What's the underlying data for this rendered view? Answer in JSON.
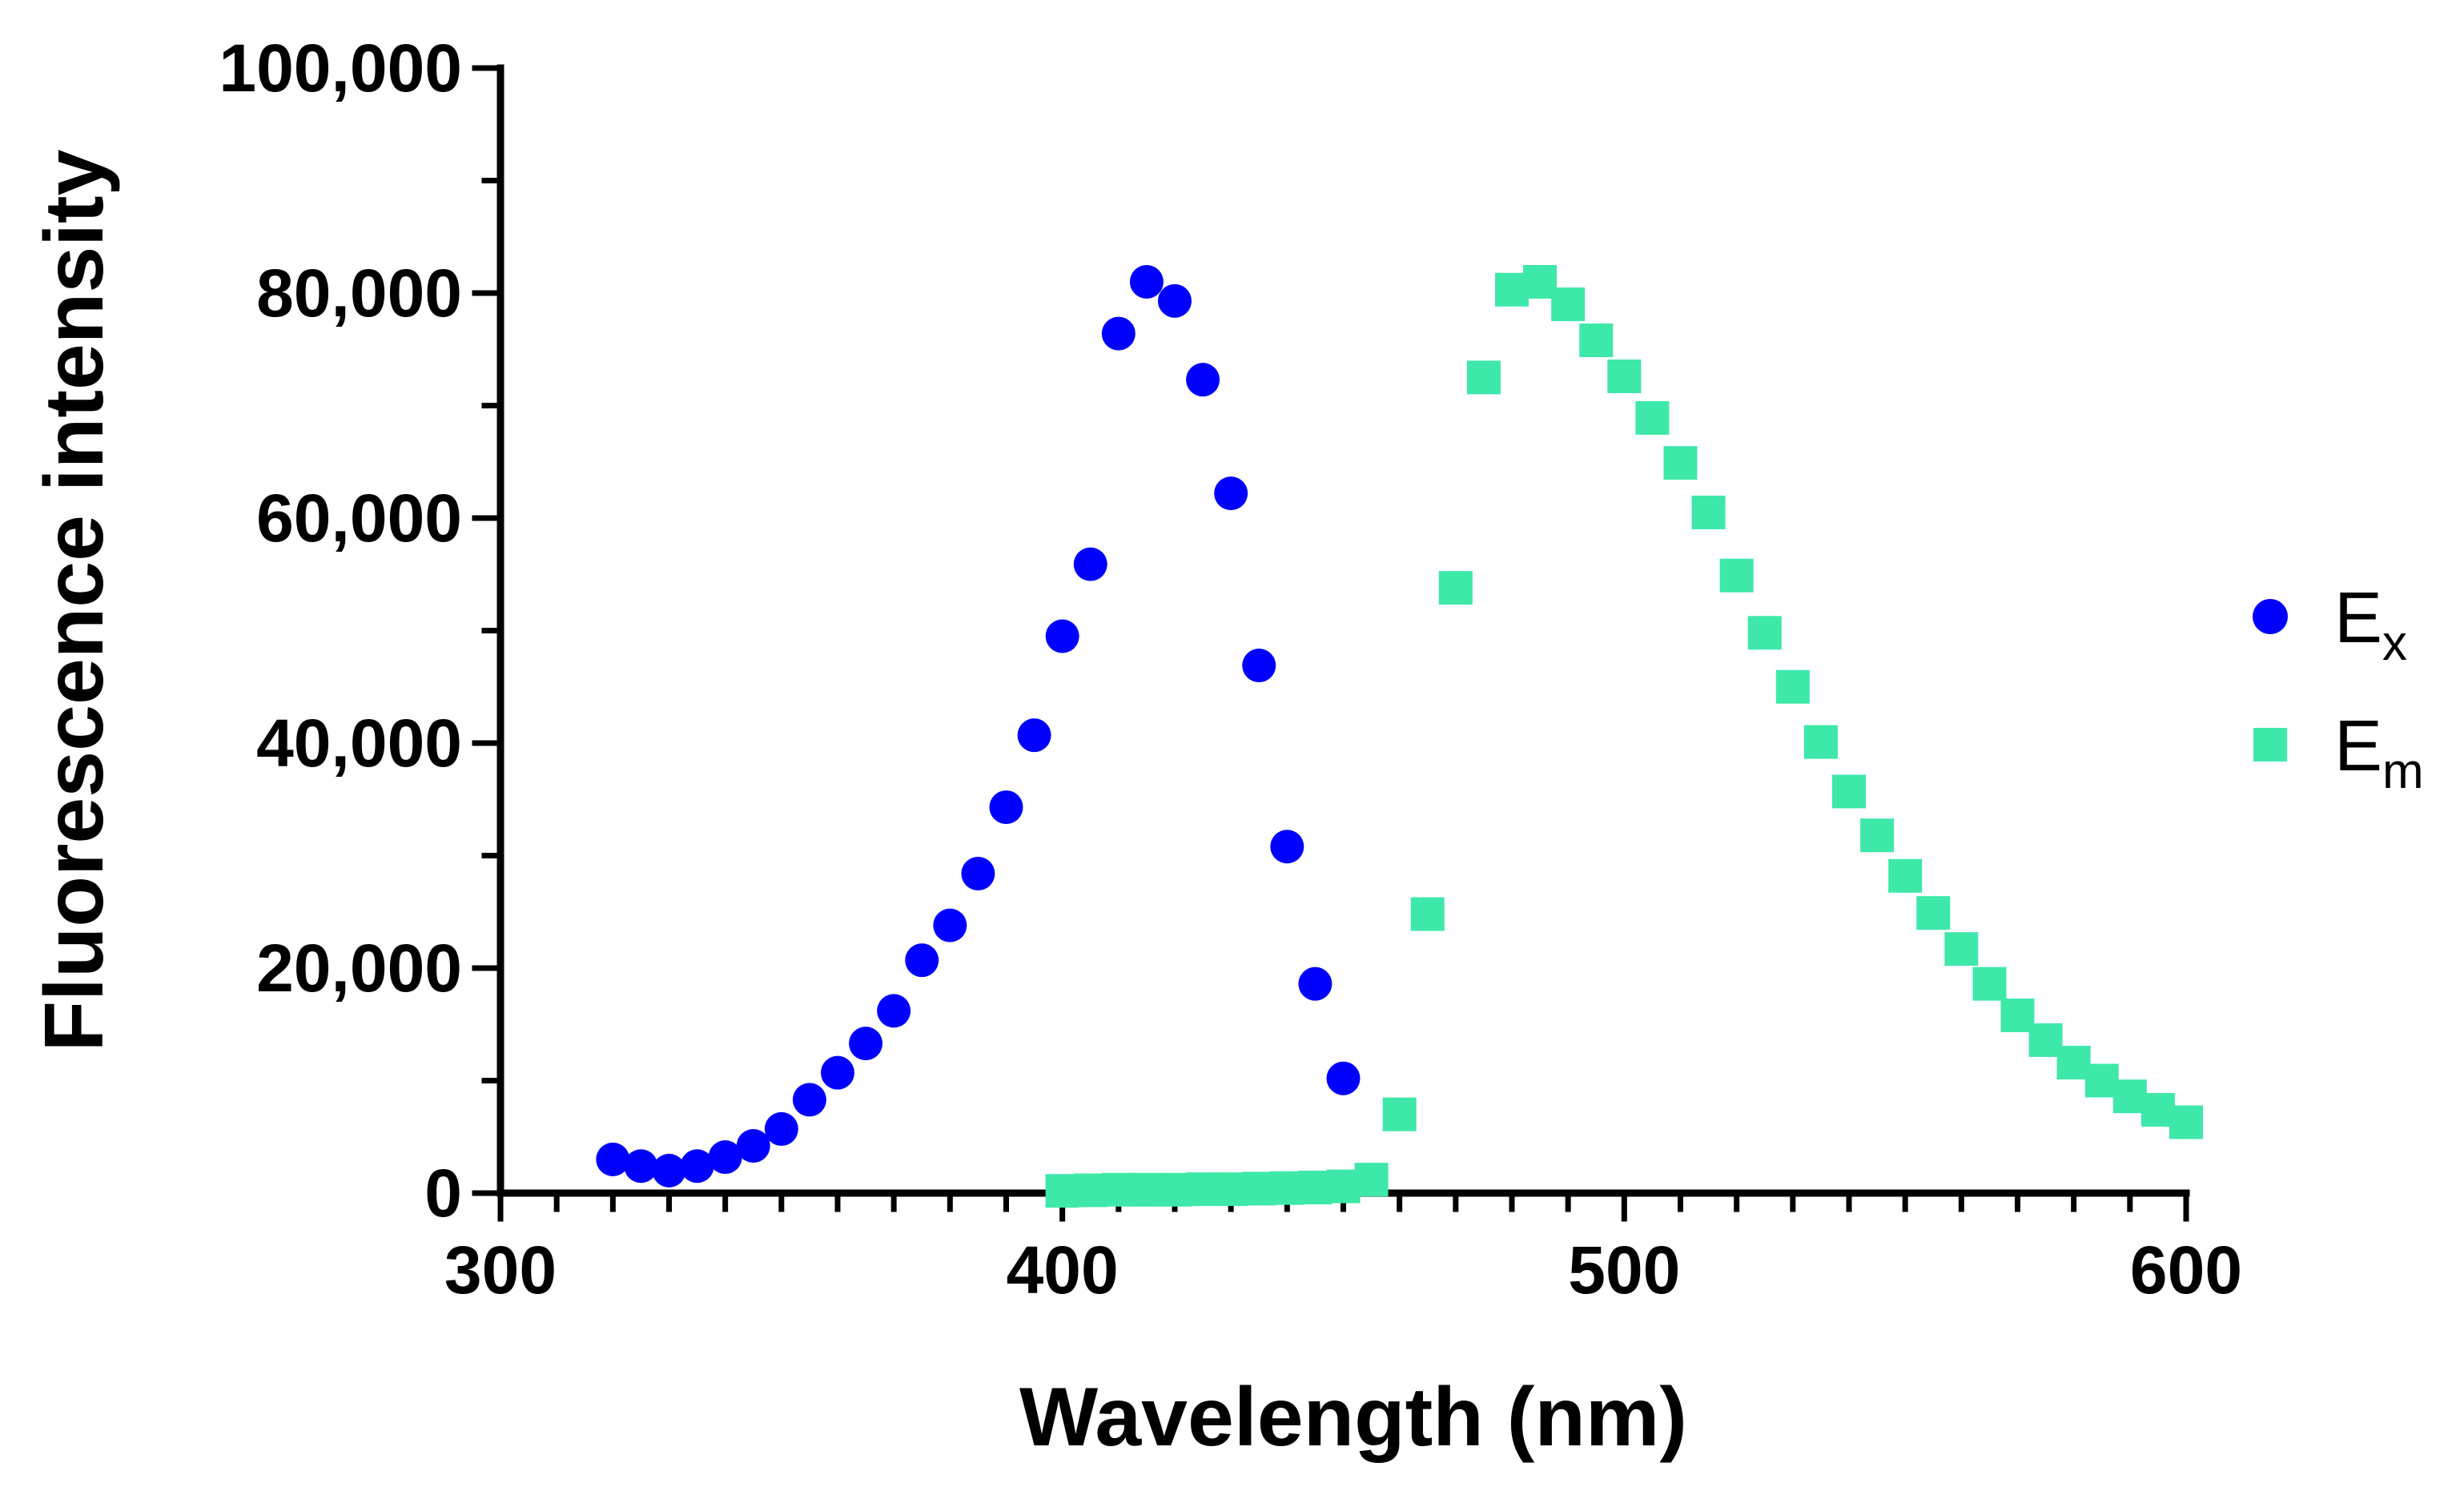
{
  "chart_data": {
    "type": "scatter",
    "title": "",
    "xlabel": "Wavelength (nm)",
    "ylabel": "Fluorescence intensity",
    "xlim": [
      300,
      600
    ],
    "ylim": [
      0,
      100000
    ],
    "xticks": [
      300,
      400,
      500,
      600
    ],
    "xtick_labels": [
      "300",
      "400",
      "500",
      "600"
    ],
    "yticks": [
      0,
      20000,
      40000,
      60000,
      80000,
      100000
    ],
    "ytick_labels": [
      "0",
      "20,000",
      "40,000",
      "60,000",
      "80,000",
      "100,000"
    ],
    "grid": false,
    "legend_position": "right",
    "series": [
      {
        "name": "Ex",
        "legend_main": "E",
        "legend_sub": "x",
        "marker": "circle",
        "color": "#0000ff",
        "x": [
          320,
          325,
          330,
          335,
          340,
          345,
          350,
          355,
          360,
          365,
          370,
          375,
          380,
          385,
          390,
          395,
          400,
          405,
          410,
          415,
          420,
          425,
          430,
          435,
          440,
          445,
          450
        ],
        "y": [
          3000,
          2400,
          2000,
          2400,
          3200,
          4200,
          5700,
          8300,
          10700,
          13300,
          16200,
          20700,
          23800,
          28400,
          34300,
          40700,
          49500,
          55900,
          76400,
          81000,
          79300,
          72300,
          62200,
          46900,
          30800,
          18600,
          10200
        ]
      },
      {
        "name": "Em",
        "legend_main": "E",
        "legend_sub": "m",
        "marker": "square",
        "color": "#3ee8a9",
        "x": [
          400,
          405,
          410,
          415,
          420,
          425,
          430,
          435,
          440,
          445,
          450,
          455,
          460,
          465,
          470,
          475,
          480,
          485,
          490,
          495,
          500,
          505,
          510,
          515,
          520,
          525,
          530,
          535,
          540,
          545,
          550,
          555,
          560,
          565,
          570,
          575,
          580,
          585,
          590,
          595,
          600
        ],
        "y": [
          200,
          250,
          300,
          300,
          300,
          350,
          350,
          400,
          450,
          500,
          600,
          1200,
          7000,
          24800,
          53800,
          72500,
          80300,
          81000,
          79000,
          75800,
          72600,
          68900,
          64900,
          60500,
          54900,
          49800,
          45000,
          40100,
          35700,
          31800,
          28200,
          24900,
          21700,
          18600,
          15800,
          13600,
          11600,
          10000,
          8600,
          7400,
          6300
        ]
      }
    ]
  }
}
